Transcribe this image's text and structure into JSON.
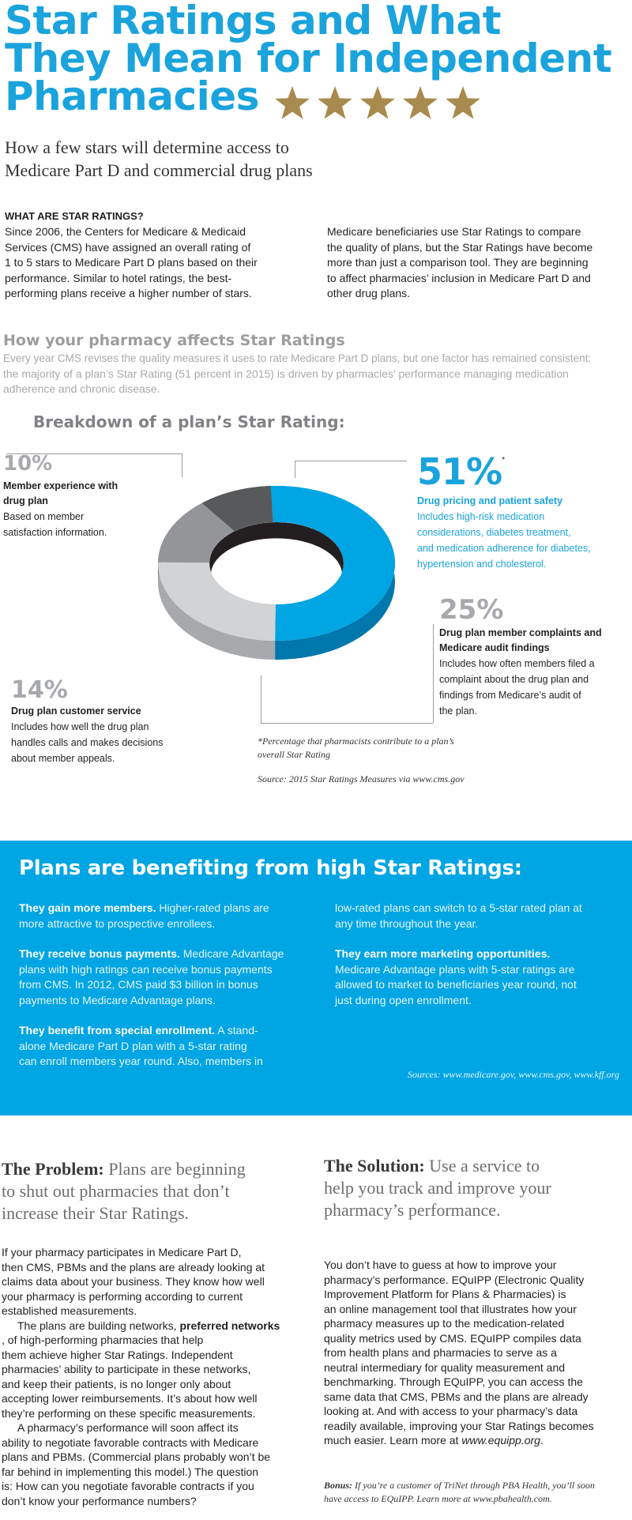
{
  "header": {
    "title_lines": [
      "Star Ratings and What",
      "They Mean for Independent",
      "Pharmacies"
    ],
    "star_count": 5,
    "star_color": "#a88a4c",
    "subtitle_lines": [
      "How a few stars will determine access to",
      "Medicare Part D and commercial drug plans"
    ]
  },
  "what_are": {
    "heading": "WHAT ARE STAR RATINGS?",
    "left_lines": [
      "Since 2006, the Centers for Medicare & Medicaid",
      "Services (CMS) have assigned an overall rating of",
      "1 to 5 stars to Medicare Part D plans based on their",
      "performance. Similar to hotel ratings, the best-",
      "performing plans receive a higher number of stars."
    ],
    "right_lines": [
      "Medicare beneficiaries use Star Ratings to compare",
      "the quality of plans, but the Star Ratings have become",
      "more than just a comparison tool. They are beginning",
      "to affect pharmacies’ inclusion in Medicare Part D and",
      "other drug plans."
    ]
  },
  "affects": {
    "heading": "How your pharmacy affects Star Ratings",
    "lines": [
      "Every year CMS revises the quality measures it uses to rate Medicare Part D plans, but one factor has remained consistent:",
      "the majority of a plan’s Star Rating (51 percent in 2015) is driven by pharmacies’ performance managing medication",
      "adherence and chronic disease."
    ]
  },
  "breakdown": {
    "title": "Breakdown of a plan’s Star Rating:",
    "segments": [
      {
        "pct": "10%",
        "value": 10,
        "label_lines": [
          "Member experience with",
          "drug plan"
        ],
        "desc_lines": [
          "Based on member",
          "satisfaction information."
        ],
        "color": "#58595b"
      },
      {
        "pct": "51%",
        "value": 51,
        "asterisk": "*",
        "label_lines": [
          "Drug pricing and patient safety"
        ],
        "desc_lines": [
          "Includes high-risk medication",
          "considerations, diabetes treatment,",
          "and medication adherence for diabetes,",
          "hypertension and cholesterol."
        ],
        "color": "#00a5e3"
      },
      {
        "pct": "25%",
        "value": 25,
        "label_lines": [
          "Drug plan member complaints and",
          "Medicare audit findings"
        ],
        "desc_lines": [
          "Includes how often members filed a",
          "complaint about the drug plan and",
          "findings from Medicare’s audit of",
          "the plan."
        ],
        "color": "#d1d3d4"
      },
      {
        "pct": "14%",
        "value": 14,
        "label_lines": [
          "Drug plan customer service"
        ],
        "desc_lines": [
          "Includes how well the drug plan",
          "handles calls and makes decisions",
          "about member appeals."
        ],
        "color": "#939598"
      }
    ],
    "note_lines": [
      "*Percentage that pharmacists contribute to a plan’s",
      "overall Star Rating"
    ],
    "source": "Source: 2015 Star Ratings Measures via www.cms.gov"
  },
  "benefits": {
    "title": "Plans are benefiting from high Star Ratings:",
    "bg_color": "#00a5e3",
    "items_left": [
      {
        "lead": "They gain more members.",
        "lines": [
          " Higher-rated plans are",
          "more attractive to prospective enrollees."
        ]
      },
      {
        "lead": "They receive bonus payments.",
        "lines": [
          " Medicare Advantage",
          "plans with high ratings can receive bonus payments",
          "from CMS. In 2012, CMS paid $3 billion in bonus",
          "payments to Medicare Advantage plans."
        ]
      },
      {
        "lead": "They benefit from special enrollment.",
        "lines": [
          " A stand-",
          "alone Medicare Part D plan with a 5-star rating",
          "can enroll members year round. Also, members in"
        ]
      }
    ],
    "right_cont_lines": [
      "low-rated plans can switch to a 5-star rated plan at",
      "any time throughout the year."
    ],
    "item_right": {
      "lead": "They earn more marketing opportunities.",
      "lines": [
        "Medicare Advantage plans with 5-star ratings are",
        "allowed to market to beneficiaries year round, not",
        "just during open enrollment."
      ]
    },
    "sources": "Sources: www.medicare.gov, www.cms.gov, www.kff.org"
  },
  "problem": {
    "lead": "The Problem:",
    "head_lines": [
      " Plans are beginning",
      "to shut out pharmacies that don’t",
      "increase their Star Ratings."
    ],
    "p1_lines": [
      "If your pharmacy participates in Medicare Part D,",
      "then CMS, PBMs and the plans are already looking at",
      "claims data about your business. They know how well",
      "your pharmacy is performing according to current",
      "established measurements."
    ],
    "p2_pre": "The plans are building networks, ",
    "p2_bold": "preferred networks",
    "p2_rest_lines": [
      ", of high-performing pharmacies that help",
      "them achieve higher Star Ratings. Independent",
      "pharmacies’ ability to participate in these networks,",
      "and keep their patients, is no longer only about",
      "accepting lower reimbursements. It’s about how well",
      "they’re performing on these specific measurements."
    ],
    "p3_lines": [
      "A pharmacy’s performance will soon affect its",
      "ability to negotiate favorable contracts with Medicare",
      "plans and PBMs. (Commercial plans probably won’t be",
      "far behind in implementing this model.) The question",
      "is: How can you negotiate favorable contracts if you",
      "don’t know your performance numbers?"
    ]
  },
  "solution": {
    "lead": "The Solution:",
    "head_lines": [
      " Use a service to",
      "help you track and improve your",
      "pharmacy’s performance."
    ],
    "p_lines": [
      "You don’t have to guess at how to improve your",
      "pharmacy’s performance. EQuIPP (Electronic Quality",
      "Improvement Platform for Plans & Pharmacies) is",
      "an online management tool that illustrates how your",
      "pharmacy measures up to the medication-related",
      "quality metrics used by CMS. EQuIPP compiles data",
      "from health plans and pharmacies to serve as a",
      "neutral intermediary for quality measurement and",
      "benchmarking. Through EQuIPP, you can access the",
      "same data that CMS, PBMs and the plans are already",
      "looking at. And with access to your pharmacy’s data",
      "readily available, improving your Star Ratings becomes"
    ],
    "p_last_pre": "much easier. Learn more at ",
    "p_last_link": "www.equipp.org",
    "p_last_post": ".",
    "bonus_lead": "Bonus:",
    "bonus_lines": [
      " If you’re a customer of TriNet through PBA Health, you’ll soon",
      "have access to EQuIPP. Learn more at www.pbahealth.com."
    ]
  }
}
